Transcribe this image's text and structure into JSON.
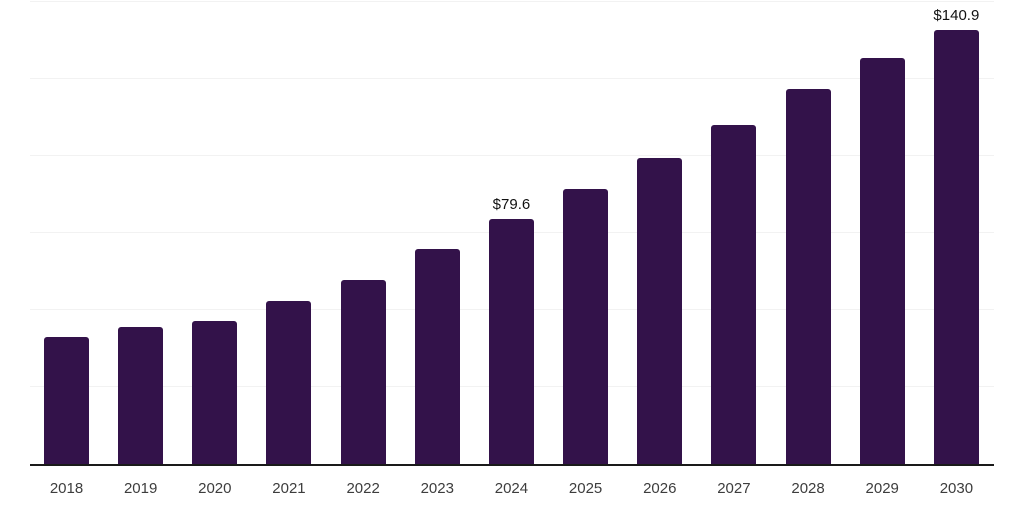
{
  "chart_data": {
    "type": "bar",
    "categories": [
      "2018",
      "2019",
      "2020",
      "2021",
      "2022",
      "2023",
      "2024",
      "2025",
      "2026",
      "2027",
      "2028",
      "2029",
      "2030"
    ],
    "values": [
      41.4,
      44.4,
      46.5,
      53.0,
      59.9,
      69.7,
      79.6,
      89.4,
      99.5,
      110.1,
      121.8,
      131.9,
      140.9
    ],
    "value_labels": [
      "",
      "",
      "",
      "",
      "",
      "",
      "$79.6",
      "",
      "",
      "",
      "",
      "",
      "$140.9"
    ],
    "title": "",
    "xlabel": "",
    "ylabel": "",
    "ylim": [
      0,
      150
    ],
    "gridline_step": 25,
    "grid": true,
    "legend": false
  },
  "colors": {
    "bar": "#33124A",
    "gridline": "#f2f2f2",
    "axis_line": "#1a1a1a",
    "tick_label": "#3d3d3d",
    "value_label": "#111111",
    "background": "#ffffff"
  }
}
